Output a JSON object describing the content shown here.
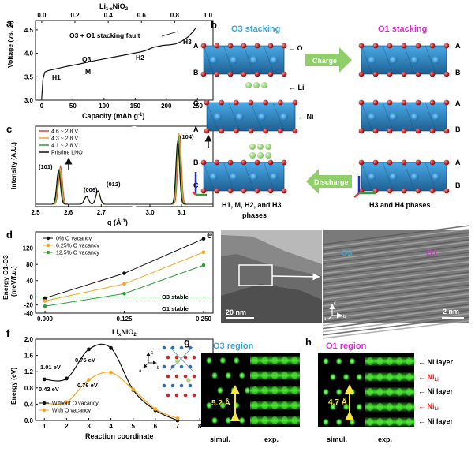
{
  "colors": {
    "black_series": "#111111",
    "orange_series": "#f5a623",
    "green_series": "#2e9e3a",
    "red_series": "#d9443a",
    "o3_label": "#3aa7d6",
    "o1_label": "#d62fd1",
    "octahedron_blue": "#2f8ccf",
    "li_green": "#9fd97a",
    "o_red": "#c42b2b",
    "arrow_green": "#8fce6a",
    "nili_red": "#e02020"
  },
  "panel_a": {
    "letter": "a",
    "top_axis_label": "Li1-xNiO2",
    "top_axis_label_main": "Li",
    "top_axis_label_sub": "1-x",
    "top_axis_label_tail": "NiO",
    "top_axis_label_sub2": "2",
    "ylabel": "Voltage (vs. Li)",
    "xlabel": "Capacity (mAh g",
    "xlabel_sup": "-1",
    "xlabel_tail": ")",
    "annotations": [
      "O3 + O1 stacking fault",
      "H1",
      "M",
      "O3",
      "H2",
      "H3"
    ]
  },
  "panel_b": {
    "letter": "b",
    "o3_title": "O3 stacking",
    "o1_title": "O1 stacking",
    "charge": "Charge",
    "discharge": "Discharge",
    "labels_o": "O",
    "labels_li": "Li",
    "labels_ni": "Ni",
    "left_layers": [
      "A",
      "B",
      "C",
      "A",
      "B",
      "C"
    ],
    "right_layers": [
      "A",
      "B",
      "A",
      "B",
      "A",
      "B"
    ],
    "caption_left_1": "H1, M, H2, and H3",
    "caption_left_2": "phases",
    "caption_right": "H3 and H4 phases"
  },
  "panel_c": {
    "letter": "c",
    "ylabel": "Intensity (A.U.)",
    "xlabel": "q (Å",
    "xlabel_sup": "-1",
    "xlabel_tail": ")",
    "peaks": [
      "(101)",
      "(006)",
      "(012)",
      "(104)"
    ],
    "legend": [
      "4.6 ~ 2.8 V",
      "4.3 ~ 2.8 V",
      "4.1 ~ 2.8 V",
      "Pristine LNO"
    ]
  },
  "panel_d": {
    "letter": "d",
    "ylabel": "Energy O1-O3",
    "ylabel2": "(meV/f.u.)",
    "o3_stable": "O3 stable",
    "o1_stable": "O1 stable"
  },
  "panel_e": {
    "letter": "e",
    "scale_left": "20 nm",
    "scale_right": "2 nm",
    "o3": "O3",
    "o1": "O1",
    "axis_c": "c",
    "axis_a": "a",
    "axis_b": "b"
  },
  "panel_f": {
    "letter": "f",
    "title_main": "Li",
    "title_sub": "x",
    "title_tail": "NiO",
    "title_sub2": "2",
    "ylabel": "Energy (eV)",
    "barrier_labels": [
      "1.01 eV",
      "0.75 eV",
      "0.42 eV",
      "0.76 eV"
    ],
    "axis_c": "c",
    "axis_a": "a",
    "axis_b": "b"
  },
  "panel_g": {
    "letter": "g",
    "title": "O3 region",
    "spacing": "5.2 Å",
    "simul": "simul.",
    "exp": "exp."
  },
  "panel_h": {
    "letter": "h",
    "title": "O1 region",
    "spacing": "4.7 Å",
    "simul": "simul.",
    "exp": "exp.",
    "layers": [
      "Ni layer",
      "Ni",
      "Ni layer",
      "Ni",
      "Ni layer"
    ],
    "layer_sub": "Li"
  },
  "chart_data": [
    {
      "type": "line",
      "panel": "a",
      "xlabel": "Capacity (mAh g-1)",
      "ylabel": "Voltage (vs. Li)",
      "top_axis_label": "Li1-xNiO2",
      "xlim": [
        -10,
        275
      ],
      "ylim": [
        3.0,
        4.7
      ],
      "xticks": [
        0,
        50,
        100,
        150,
        200,
        250
      ],
      "yticks": [
        3.0,
        3.5,
        4.0,
        4.5
      ],
      "top_xticks": [
        0.0,
        0.2,
        0.4,
        0.6,
        0.8,
        1.0
      ],
      "series": [
        {
          "x": [
            0,
            2,
            5,
            10,
            20,
            40,
            60,
            80,
            100,
            120,
            140,
            155,
            165,
            180,
            195,
            205,
            215,
            225,
            235,
            242,
            248
          ],
          "y": [
            3.05,
            3.45,
            3.6,
            3.63,
            3.66,
            3.72,
            3.77,
            3.83,
            3.88,
            3.93,
            3.98,
            4.02,
            4.05,
            4.13,
            4.17,
            4.18,
            4.2,
            4.26,
            4.35,
            4.45,
            4.55
          ]
        }
      ],
      "annotations": [
        "O3 + O1 stacking fault",
        "H1",
        "M",
        "O3",
        "H2",
        "H3"
      ]
    },
    {
      "type": "line",
      "panel": "c",
      "xlabel": "q (Å-1)",
      "ylabel": "Intensity (A.U.)",
      "xlim": [
        2.5,
        3.2
      ],
      "xticks": [
        2.5,
        2.6,
        2.7,
        3.0,
        3.1
      ],
      "peaks": [
        {
          "label": "(101)",
          "q": 2.57
        },
        {
          "label": "(006)",
          "q": 2.66
        },
        {
          "label": "(012)",
          "q": 2.69
        },
        {
          "label": "(104)",
          "q": 3.09
        }
      ],
      "series": [
        {
          "name": "4.6 ~ 2.8 V"
        },
        {
          "name": "4.3 ~ 2.8 V"
        },
        {
          "name": "4.1 ~ 2.8 V"
        },
        {
          "name": "Pristine LNO"
        }
      ],
      "legend_position": "top-left"
    },
    {
      "type": "line",
      "panel": "d",
      "xlabel": "",
      "ylabel": "Energy O1-O3 (meV/f.u.)",
      "categories": [
        "0.000",
        "0.125",
        "0.250"
      ],
      "x": [
        0,
        0.125,
        0.25
      ],
      "ylim": [
        -40,
        160
      ],
      "yticks": [
        -40,
        -20,
        0,
        20,
        40,
        60,
        80,
        100,
        120,
        140
      ],
      "series": [
        {
          "name": "0% O vacancy",
          "values": [
            -3,
            58,
            143
          ]
        },
        {
          "name": "6.25% O vacancy",
          "values": [
            -10,
            32,
            110
          ]
        },
        {
          "name": "12.5% O vacancy",
          "values": [
            -23,
            8,
            78
          ]
        }
      ],
      "reference_line": 0,
      "legend_position": "top-left"
    },
    {
      "type": "line",
      "panel": "f",
      "title": "LixNiO2",
      "xlabel": "Reaction coordinate",
      "ylabel": "Energy (eV)",
      "xlim": [
        0.6,
        8.6
      ],
      "ylim": [
        0.0,
        2.0
      ],
      "xticks": [
        1,
        2,
        3,
        4,
        5,
        6,
        7,
        8
      ],
      "yticks": [
        0.0,
        0.4,
        0.8,
        1.2,
        1.6,
        2.0
      ],
      "series": [
        {
          "name": "Without O vacancy",
          "x": [
            1,
            2,
            3,
            4,
            5,
            6,
            7
          ],
          "values": [
            1.01,
            1.03,
            1.75,
            1.78,
            0.75,
            0.25,
            0.0
          ]
        },
        {
          "name": "With O vacancy",
          "x": [
            1,
            2,
            3,
            4,
            5,
            6,
            7
          ],
          "values": [
            0.42,
            0.45,
            1.0,
            1.18,
            0.76,
            0.28,
            0.05
          ]
        }
      ],
      "annotations": [
        "1.01 eV",
        "0.75 eV",
        "0.42 eV",
        "0.76 eV"
      ],
      "legend_position": "bottom-left"
    }
  ]
}
